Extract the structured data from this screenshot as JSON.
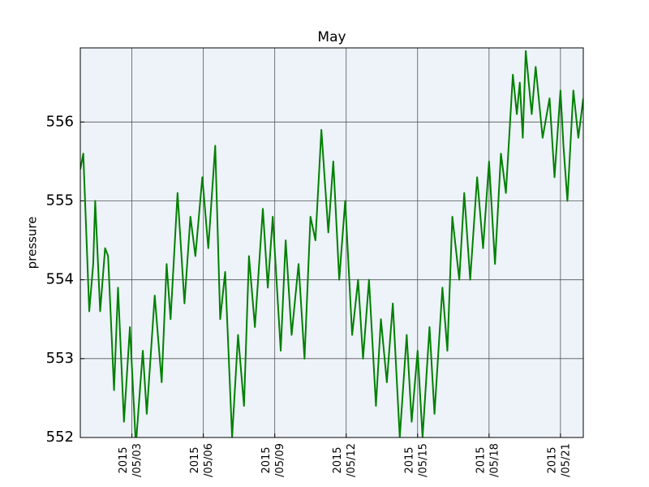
{
  "chart_data": {
    "type": "line",
    "title": "May",
    "ylabel": "pressure",
    "series": [
      {
        "name": "pressure",
        "color": "#008000",
        "x": [
          "2015-04-30T20:00",
          "2015-04-30T23:00",
          "2015-05-01T05:00",
          "2015-05-01T09:00",
          "2015-05-01T11:00",
          "2015-05-01T16:00",
          "2015-05-01T21:00",
          "2015-05-02T00:00",
          "2015-05-02T06:00",
          "2015-05-02T10:00",
          "2015-05-02T16:00",
          "2015-05-02T22:00",
          "2015-05-03T04:00",
          "2015-05-03T11:00",
          "2015-05-03T15:00",
          "2015-05-03T23:00",
          "2015-05-04T06:00",
          "2015-05-04T11:00",
          "2015-05-04T15:00",
          "2015-05-04T22:00",
          "2015-05-05T05:00",
          "2015-05-05T11:00",
          "2015-05-05T16:00",
          "2015-05-05T23:00",
          "2015-05-06T05:00",
          "2015-05-06T12:00",
          "2015-05-06T17:00",
          "2015-05-06T22:00",
          "2015-05-07T05:00",
          "2015-05-07T11:00",
          "2015-05-07T17:00",
          "2015-05-07T22:00",
          "2015-05-08T04:00",
          "2015-05-08T12:00",
          "2015-05-08T17:00",
          "2015-05-08T22:00",
          "2015-05-09T06:00",
          "2015-05-09T11:00",
          "2015-05-09T17:00",
          "2015-05-10T00:00",
          "2015-05-10T06:00",
          "2015-05-10T12:00",
          "2015-05-10T17:00",
          "2015-05-10T23:00",
          "2015-05-11T06:00",
          "2015-05-11T11:00",
          "2015-05-11T17:00",
          "2015-05-11T23:00",
          "2015-05-12T06:00",
          "2015-05-12T12:00",
          "2015-05-12T17:00",
          "2015-05-12T23:00",
          "2015-05-13T06:00",
          "2015-05-13T11:00",
          "2015-05-13T17:00",
          "2015-05-13T23:00",
          "2015-05-14T06:00",
          "2015-05-14T13:00",
          "2015-05-14T18:00",
          "2015-05-15T00:00",
          "2015-05-15T05:00",
          "2015-05-15T12:00",
          "2015-05-15T17:00",
          "2015-05-16T01:00",
          "2015-05-16T06:00",
          "2015-05-16T11:00",
          "2015-05-16T18:00",
          "2015-05-16T23:00",
          "2015-05-17T05:00",
          "2015-05-17T12:00",
          "2015-05-17T18:00",
          "2015-05-18T00:00",
          "2015-05-18T06:00",
          "2015-05-18T12:00",
          "2015-05-18T17:00",
          "2015-05-19T00:00",
          "2015-05-19T04:00",
          "2015-05-19T07:00",
          "2015-05-19T10:00",
          "2015-05-19T13:00",
          "2015-05-19T19:00",
          "2015-05-19T23:00",
          "2015-05-20T06:00",
          "2015-05-20T13:00",
          "2015-05-20T18:00",
          "2015-05-21T00:00",
          "2015-05-21T03:00",
          "2015-05-21T07:00",
          "2015-05-21T13:00",
          "2015-05-21T18:00",
          "2015-05-21T23:00"
        ],
        "values": [
          555.4,
          555.6,
          553.6,
          554.2,
          555.0,
          553.6,
          554.4,
          554.3,
          552.6,
          553.9,
          552.2,
          553.4,
          551.9,
          553.1,
          552.3,
          553.8,
          552.7,
          554.2,
          553.5,
          555.1,
          553.7,
          554.8,
          554.3,
          555.3,
          554.4,
          555.7,
          553.5,
          554.1,
          552.0,
          553.3,
          552.4,
          554.3,
          553.4,
          554.9,
          553.9,
          554.8,
          553.1,
          554.5,
          553.3,
          554.2,
          553.0,
          554.8,
          554.5,
          555.9,
          554.6,
          555.5,
          554.0,
          555.0,
          553.3,
          554.0,
          553.0,
          554.0,
          552.4,
          553.5,
          552.7,
          553.7,
          552.0,
          553.3,
          552.2,
          553.1,
          552.0,
          553.4,
          552.3,
          553.9,
          553.1,
          554.8,
          554.0,
          555.1,
          554.0,
          555.3,
          554.4,
          555.5,
          554.2,
          555.6,
          555.1,
          556.6,
          556.1,
          556.5,
          555.8,
          556.9,
          556.1,
          556.7,
          555.8,
          556.3,
          555.3,
          556.4,
          555.7,
          555.0,
          556.4,
          555.8,
          556.3
        ]
      }
    ],
    "xlim": [
      "2015-04-30T20:00",
      "2015-05-21T23:00"
    ],
    "xticks": [
      {
        "value": "2015-05-03T00:00",
        "label": "2015\n/05/03"
      },
      {
        "value": "2015-05-06T00:00",
        "label": "2015\n/05/06"
      },
      {
        "value": "2015-05-09T00:00",
        "label": "2015\n/05/09"
      },
      {
        "value": "2015-05-12T00:00",
        "label": "2015\n/05/12"
      },
      {
        "value": "2015-05-15T00:00",
        "label": "2015\n/05/15"
      },
      {
        "value": "2015-05-18T00:00",
        "label": "2015\n/05/18"
      },
      {
        "value": "2015-05-21T00:00",
        "label": "2015\n/05/21"
      }
    ],
    "ylim": [
      552,
      556.94
    ],
    "yticks": [
      552,
      553,
      554,
      555,
      556
    ],
    "grid": true
  }
}
